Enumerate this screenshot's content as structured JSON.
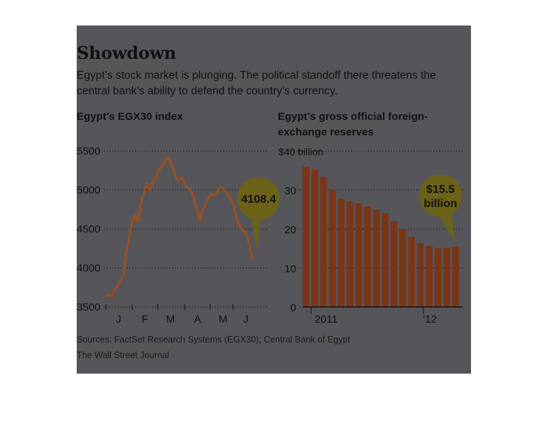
{
  "header": {
    "title": "Showdown",
    "subtitle": "Egypt’s stock market is plunging. The political standoff there threatens the central bank’s ability to defend the country’s currency."
  },
  "footer": {
    "sources": "Sources: FactSet Research Systems (EGX30); Central Bank of Egypt",
    "credit": "The Wall Street Journal"
  },
  "colors": {
    "panel_background": "#56565a",
    "line": "#9a4f22",
    "bar": "#7a3516",
    "callout": "#6b6218",
    "text": "#111111"
  },
  "chart_data": [
    {
      "type": "line",
      "title": "Egypt’s EGX30 index",
      "ylim": [
        3500,
        5500
      ],
      "yticks": [
        "5500",
        "5000",
        "4500",
        "4000",
        "3500"
      ],
      "xticks": [
        "J",
        "F",
        "M",
        "A",
        "M",
        "J"
      ],
      "grid": true,
      "callout": "4108.4",
      "series": [
        {
          "values": [
            3640,
            3660,
            3640,
            3720,
            3780,
            3840,
            3880,
            4200,
            4400,
            4600,
            4680,
            4580,
            4850,
            4950,
            5080,
            5000,
            5100,
            5150,
            5250,
            5300,
            5350,
            5420,
            5380,
            5280,
            5150,
            5120,
            5160,
            5080,
            5020,
            5000,
            4900,
            4780,
            4600,
            4750,
            4800,
            4900,
            4950,
            4930,
            4960,
            5040,
            5020,
            4980,
            4920,
            4880,
            4750,
            4600,
            4520,
            4480,
            4450,
            4300,
            4108.4
          ]
        }
      ]
    },
    {
      "type": "bar",
      "title": "Egypt’s gross official foreign-exchange reserves",
      "unit_label": "$40 billion",
      "ylim": [
        0,
        40
      ],
      "yticks": [
        "30",
        "20",
        "10",
        "0"
      ],
      "xticks": [
        "2011",
        "’12"
      ],
      "grid": true,
      "callout": [
        "$15.5",
        "billion"
      ],
      "values": [
        36,
        35.2,
        33.4,
        30,
        27.8,
        27.1,
        26.6,
        25.8,
        25,
        24,
        22,
        20,
        18,
        16.4,
        15.7,
        15.1,
        15.2,
        15.5
      ]
    }
  ]
}
